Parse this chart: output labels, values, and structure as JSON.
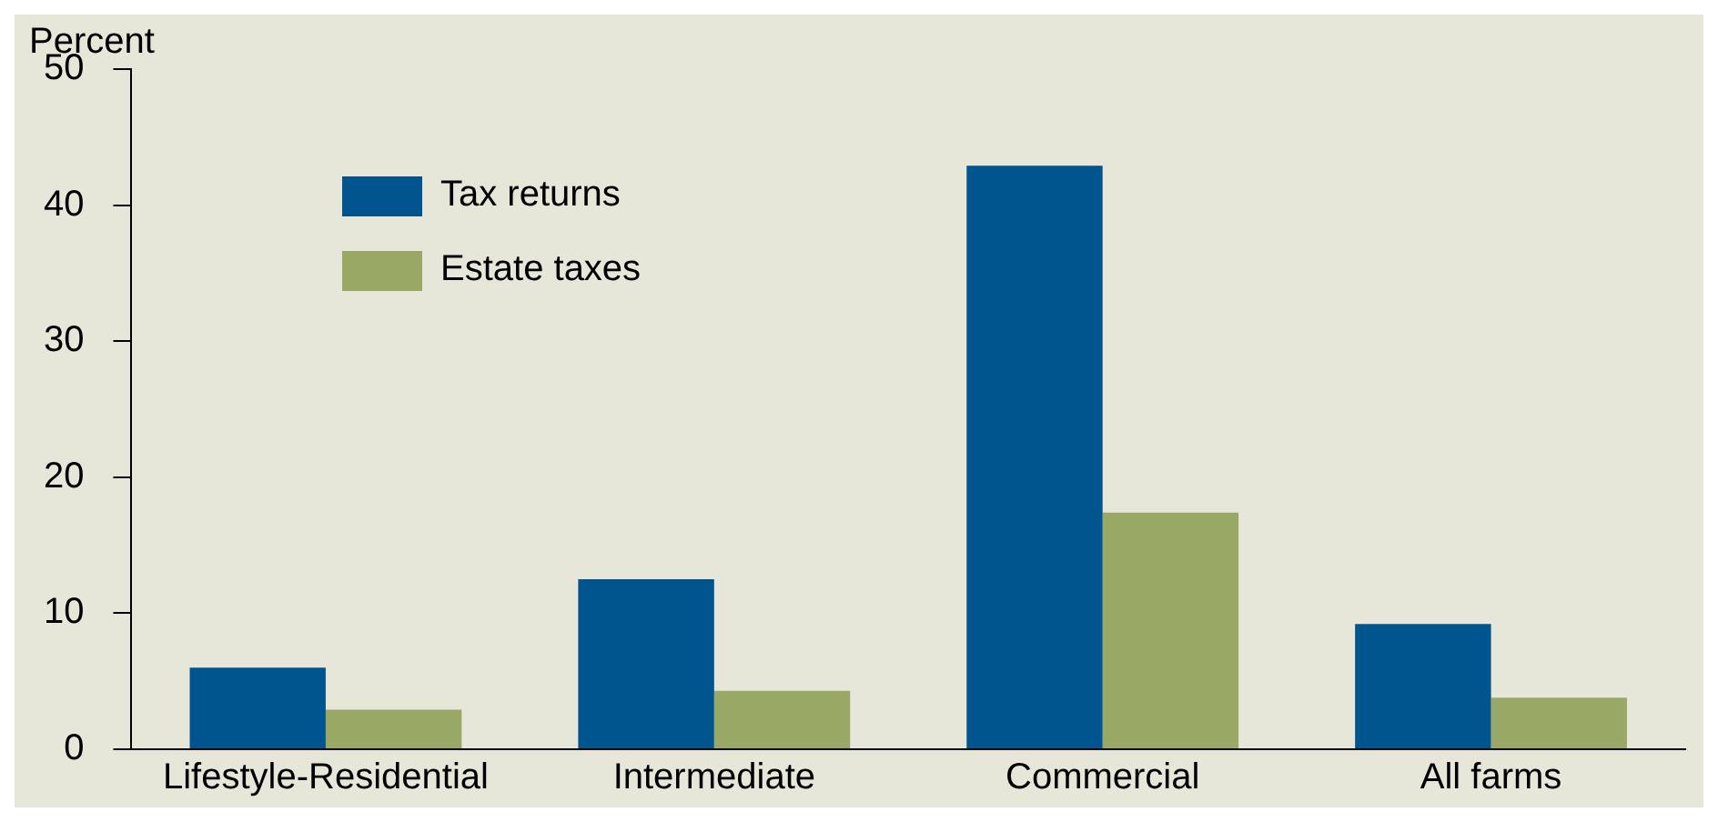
{
  "chart_data": {
    "type": "bar",
    "ylabel": "Percent",
    "categories": [
      "Lifestyle-Residential",
      "Intermediate",
      "Commercial",
      "All farms"
    ],
    "series": [
      {
        "name": "Tax returns",
        "color": "#00558f",
        "values": [
          6.0,
          12.5,
          42.9,
          9.2
        ]
      },
      {
        "name": "Estate taxes",
        "color": "#9aa866",
        "values": [
          2.9,
          4.3,
          17.4,
          3.8
        ]
      }
    ],
    "ylim": [
      0,
      50
    ],
    "yticks": [
      0,
      10,
      20,
      30,
      40,
      50
    ],
    "grid": false,
    "legend": "top left"
  }
}
